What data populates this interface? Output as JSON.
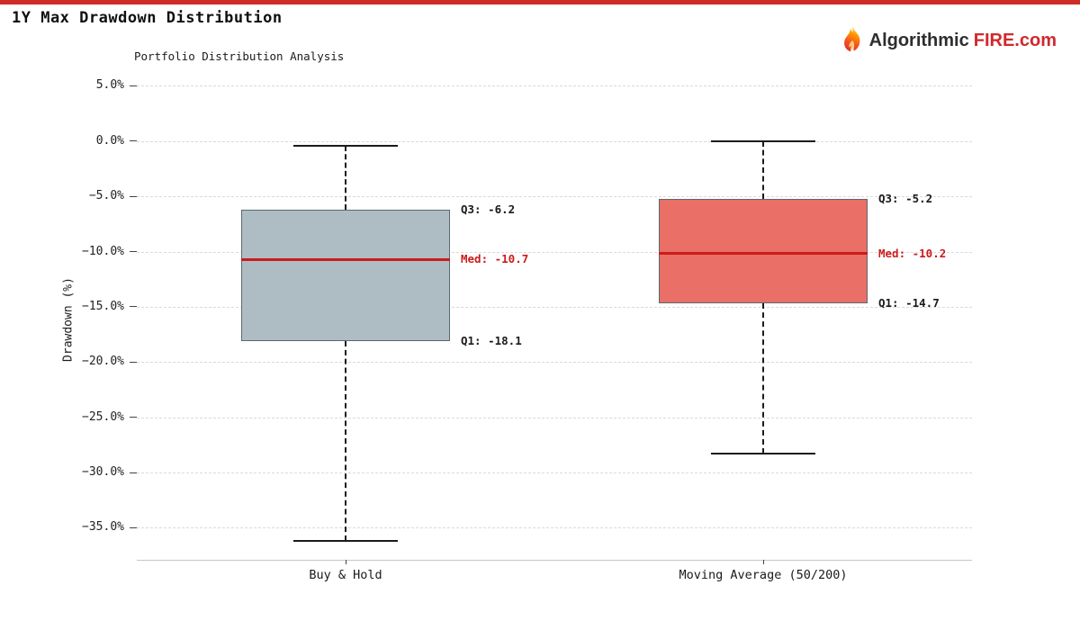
{
  "page": {
    "accent_bar_color": "#cf2b27"
  },
  "header": {
    "title": "1Y Max Drawdown Distribution",
    "logo": {
      "brand_dark": "Algorithmic",
      "brand_red": "FIRE.com"
    }
  },
  "chart_data": {
    "type": "boxplot",
    "title": "Portfolio Distribution Analysis",
    "ylabel": "Drawdown (%)",
    "ylim": [
      -37.9,
      5.6
    ],
    "grid": true,
    "legend_position": "none",
    "whisker_style": "dashed",
    "median_color": "#cc1b1b",
    "yticks": [
      5,
      0,
      -5,
      -10,
      -15,
      -20,
      -25,
      -30,
      -35
    ],
    "ytick_labels": [
      "5.0%",
      "0.0%",
      "−5.0%",
      "−10.0%",
      "−15.0%",
      "−20.0%",
      "−25.0%",
      "−30.0%",
      "−35.0%"
    ],
    "series": [
      {
        "label": "Buy & Hold",
        "box_color": "#aebcc4",
        "whisker_high": -0.4,
        "q3": -6.2,
        "median": -10.7,
        "q1": -18.1,
        "whisker_low": -36.2,
        "annotations": [
          {
            "key": "q3",
            "text": "Q3: -6.2",
            "value": -6.2,
            "color": "#1a1a1a"
          },
          {
            "key": "med",
            "text": "Med: -10.7",
            "value": -10.7,
            "color": "#cc1b1b"
          },
          {
            "key": "q1",
            "text": "Q1: -18.1",
            "value": -18.1,
            "color": "#1a1a1a"
          }
        ]
      },
      {
        "label": "Moving Average (50/200)",
        "box_color": "#ea6f66",
        "whisker_high": 0.0,
        "q3": -5.2,
        "median": -10.2,
        "q1": -14.7,
        "whisker_low": -28.3,
        "annotations": [
          {
            "key": "q3",
            "text": "Q3: -5.2",
            "value": -5.2,
            "color": "#1a1a1a"
          },
          {
            "key": "med",
            "text": "Med: -10.2",
            "value": -10.2,
            "color": "#cc1b1b"
          },
          {
            "key": "q1",
            "text": "Q1: -14.7",
            "value": -14.7,
            "color": "#1a1a1a"
          }
        ]
      }
    ]
  }
}
